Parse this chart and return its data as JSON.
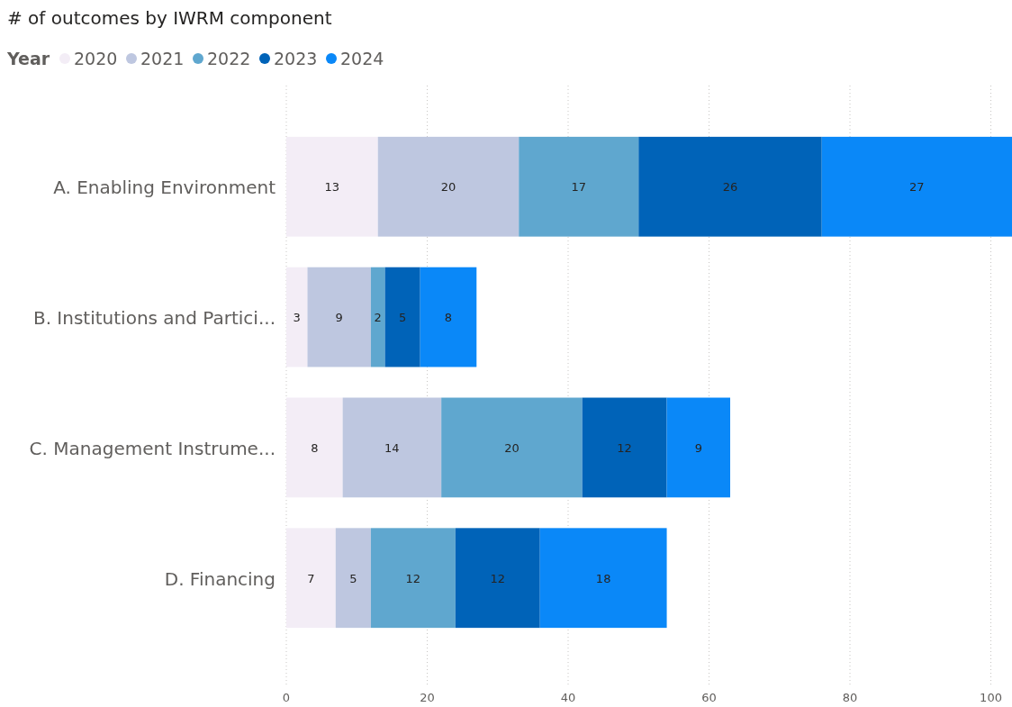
{
  "chart_data": {
    "type": "bar",
    "orientation": "horizontal",
    "stacked": true,
    "title": "# of outcomes by IWRM component",
    "legend_title": "Year",
    "legend": "top left",
    "grid": "x",
    "data_labels": true,
    "categories": [
      "A. Enabling Environment",
      "B. Institutions and Partici...",
      "C. Management Instrume...",
      "D. Financing"
    ],
    "series": [
      {
        "name": "2020",
        "color": "#f3edf6",
        "values": [
          13,
          3,
          8,
          7
        ]
      },
      {
        "name": "2021",
        "color": "#bec7e0",
        "values": [
          20,
          9,
          14,
          5
        ]
      },
      {
        "name": "2022",
        "color": "#5fa7cf",
        "values": [
          17,
          2,
          20,
          12
        ]
      },
      {
        "name": "2023",
        "color": "#0063b8",
        "values": [
          26,
          5,
          12,
          12
        ]
      },
      {
        "name": "2024",
        "color": "#0a88f8",
        "values": [
          27,
          8,
          9,
          18
        ]
      }
    ],
    "xlim": [
      0,
      103
    ],
    "xticks": [
      0,
      20,
      40,
      60,
      80,
      100
    ]
  }
}
